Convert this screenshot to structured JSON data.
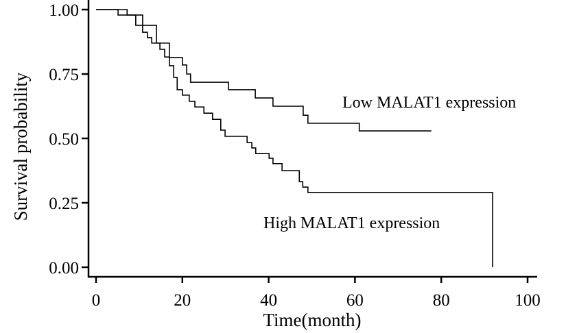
{
  "chart_data": {
    "type": "line",
    "subtype": "kaplan-meier-step",
    "title": "",
    "xlabel": "Time(month)",
    "ylabel": "Survival probability",
    "xlim": [
      0,
      100
    ],
    "ylim": [
      0,
      1
    ],
    "x_ticks": [
      0,
      20,
      40,
      60,
      80,
      100
    ],
    "x_tick_labels": [
      "0",
      "20",
      "40",
      "60",
      "80",
      "100"
    ],
    "y_ticks": [
      0,
      0.25,
      0.5,
      0.75,
      1.0
    ],
    "y_tick_labels": [
      "0.00",
      "0.25",
      "0.50",
      "0.75",
      "1.00"
    ],
    "grid": false,
    "legend": "none",
    "line_color": "#000000",
    "series": [
      {
        "name": "Low MALAT1 expression",
        "label": "Low MALAT1 expression",
        "steps": [
          [
            0,
            1.0
          ],
          [
            7.2,
            0.979
          ],
          [
            9.2,
            0.939
          ],
          [
            14.0,
            0.87
          ],
          [
            17.0,
            0.814
          ],
          [
            20.0,
            0.785
          ],
          [
            21.0,
            0.75
          ],
          [
            21.9,
            0.718
          ],
          [
            30.7,
            0.689
          ],
          [
            36.9,
            0.657
          ],
          [
            41.0,
            0.625
          ],
          [
            48.0,
            0.59
          ],
          [
            49.1,
            0.559
          ],
          [
            61.0,
            0.529
          ]
        ],
        "end_time": 77.7
      },
      {
        "name": "High MALAT1 expression",
        "label": "High MALAT1 expression",
        "steps": [
          [
            0,
            1.0
          ],
          [
            5.1,
            0.979
          ],
          [
            10.8,
            0.912
          ],
          [
            11.9,
            0.891
          ],
          [
            12.9,
            0.87
          ],
          [
            14.8,
            0.846
          ],
          [
            15.9,
            0.816
          ],
          [
            17.0,
            0.782
          ],
          [
            18.0,
            0.737
          ],
          [
            18.8,
            0.689
          ],
          [
            20.0,
            0.668
          ],
          [
            21.6,
            0.644
          ],
          [
            22.9,
            0.622
          ],
          [
            25.0,
            0.598
          ],
          [
            27.0,
            0.574
          ],
          [
            28.9,
            0.532
          ],
          [
            29.9,
            0.508
          ],
          [
            35.0,
            0.484
          ],
          [
            36.1,
            0.463
          ],
          [
            37.0,
            0.441
          ],
          [
            40.1,
            0.423
          ],
          [
            41.0,
            0.402
          ],
          [
            43.1,
            0.375
          ],
          [
            47.1,
            0.332
          ],
          [
            47.9,
            0.311
          ],
          [
            49.1,
            0.29
          ],
          [
            91.9,
            0.0
          ]
        ],
        "end_time": 91.9
      }
    ],
    "annotations": [
      {
        "text": "Low MALAT1 expression",
        "series": "Low MALAT1 expression"
      },
      {
        "text": "High MALAT1 expression",
        "series": "High MALAT1 expression"
      }
    ]
  }
}
